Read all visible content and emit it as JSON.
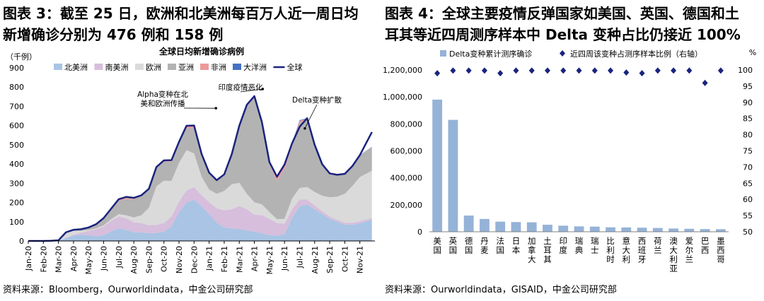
{
  "left_panel": {
    "title_line1": "图表 3：截至 25 日，欧洲和北美洲每百万人近一周日均",
    "title_line2": "新增确诊分别为 476 例和 158 例",
    "source": "资料来源：Bloomberg，Ourworldindata，中金公司研究部"
  },
  "right_panel": {
    "title_line1": "图表 4：全球主要疫情反弹国家如美国、英国、德国和土",
    "title_line2": "耳其等近四周测序样本中 Delta 变种占比仍接近 100%",
    "source": "资料来源：Ourworldindata，GISAID，中金公司研究部"
  },
  "chart_data": [
    {
      "type": "area",
      "title": "全球日均新增确诊病例",
      "ylabel": "（千例）",
      "ylim": [
        0,
        900
      ],
      "yticks": [
        0,
        100,
        200,
        300,
        400,
        500,
        600,
        700,
        800,
        900
      ],
      "x_tick_labels": [
        "Jan-20",
        "Feb-20",
        "Mar-20",
        "Apr-20",
        "May-20",
        "Jun-20",
        "Jul-20",
        "Aug-20",
        "Sep-20",
        "Oct-20",
        "Nov-20",
        "Dec-20",
        "Jan-21",
        "Feb-21",
        "Mar-21",
        "Apr-21",
        "May-21",
        "Jun-21",
        "Jul-21",
        "Aug-21",
        "Sep-21",
        "Oct-21",
        "Nov-21"
      ],
      "legend_position": "top",
      "x": [
        0,
        1,
        1.5,
        2,
        2.5,
        3,
        3.5,
        4,
        4.5,
        5,
        5.5,
        6,
        6.5,
        7,
        7.5,
        8,
        8.5,
        9,
        9.5,
        10,
        10.5,
        11,
        11.5,
        12,
        12.5,
        13,
        13.5,
        14,
        14.5,
        15,
        15.5,
        16,
        16.5,
        17,
        17.5,
        18,
        18.5,
        19,
        19.5,
        20,
        20.5,
        21,
        21.5,
        22,
        22.8
      ],
      "series": [
        {
          "name": "北美洲",
          "color": "#a9c4e4",
          "values": [
            0,
            0,
            0,
            0,
            15,
            28,
            33,
            30,
            25,
            30,
            50,
            65,
            58,
            45,
            45,
            40,
            42,
            48,
            75,
            150,
            200,
            215,
            180,
            140,
            95,
            70,
            65,
            62,
            55,
            48,
            40,
            30,
            28,
            35,
            120,
            180,
            190,
            165,
            140,
            115,
            100,
            85,
            85,
            92,
            110
          ]
        },
        {
          "name": "南美洲",
          "color": "#d6bedc",
          "values": [
            0,
            0,
            0,
            0,
            2,
            5,
            10,
            22,
            35,
            45,
            55,
            62,
            60,
            52,
            48,
            42,
            42,
            45,
            52,
            55,
            62,
            65,
            58,
            62,
            75,
            90,
            100,
            120,
            110,
            88,
            95,
            85,
            65,
            55,
            45,
            35,
            25,
            20,
            15,
            12,
            10,
            10,
            10,
            10,
            10
          ]
        },
        {
          "name": "欧洲",
          "color": "#dadada",
          "values": [
            0,
            0,
            0,
            1,
            25,
            20,
            10,
            5,
            5,
            6,
            8,
            12,
            15,
            25,
            40,
            90,
            200,
            220,
            185,
            200,
            210,
            175,
            95,
            65,
            75,
            100,
            130,
            120,
            80,
            65,
            55,
            35,
            20,
            25,
            55,
            60,
            65,
            70,
            80,
            100,
            120,
            150,
            190,
            230,
            245
          ]
        },
        {
          "name": "亚洲",
          "color": "#b3b3b3",
          "values": [
            0,
            0,
            1,
            2,
            3,
            5,
            8,
            12,
            20,
            35,
            50,
            70,
            85,
            95,
            100,
            95,
            95,
            100,
            100,
            100,
            115,
            130,
            105,
            80,
            70,
            80,
            150,
            290,
            455,
            545,
            420,
            250,
            200,
            260,
            270,
            340,
            350,
            240,
            160,
            120,
            110,
            100,
            100,
            110,
            120
          ]
        },
        {
          "name": "非洲",
          "color": "#ee9999",
          "values": [
            0,
            0,
            0,
            0,
            0,
            0,
            0,
            1,
            2,
            3,
            5,
            8,
            10,
            6,
            4,
            4,
            5,
            6,
            8,
            10,
            12,
            15,
            14,
            8,
            6,
            6,
            6,
            7,
            8,
            7,
            8,
            10,
            20,
            22,
            15,
            10,
            5,
            3,
            2,
            2,
            2,
            2,
            2,
            2,
            2
          ]
        },
        {
          "name": "大洋洲",
          "color": "#4472c4",
          "values": [
            0,
            0,
            0,
            0,
            0,
            0,
            0,
            0,
            0,
            0,
            0,
            0,
            1,
            1,
            0,
            0,
            0,
            0,
            0,
            0,
            0,
            0,
            0,
            0,
            0,
            0,
            0,
            0,
            0,
            0,
            0,
            0,
            1,
            1,
            2,
            3,
            3,
            2,
            2,
            2,
            2,
            2,
            2,
            2,
            2
          ]
        },
        {
          "name": "全球",
          "color": "#1a237e",
          "line": true,
          "values": [
            0,
            0,
            1,
            3,
            45,
            58,
            61,
            70,
            87,
            119,
            168,
            217,
            229,
            224,
            237,
            271,
            384,
            419,
            420,
            515,
            599,
            600,
            452,
            355,
            316,
            346,
            451,
            599,
            708,
            753,
            618,
            410,
            334,
            397,
            507,
            593,
            638,
            500,
            399,
            351,
            344,
            349,
            389,
            446,
            566
          ]
        }
      ],
      "annotations": [
        {
          "text_lines": [
            "Alpha变种在北",
            "美和欧洲传播"
          ],
          "target_x": 12.45,
          "target_y": 690
        },
        {
          "text_lines": [
            "印度疫情恶化"
          ],
          "target_x": 15.55,
          "target_y": 790
        },
        {
          "text_lines": [
            "Delta变种扩散"
          ],
          "target_x": 18.35,
          "target_y": 585
        }
      ]
    },
    {
      "type": "bar",
      "categories": [
        "美国",
        "英国",
        "德国",
        "丹麦",
        "法国",
        "日本",
        "加拿大",
        "土耳其",
        "印度",
        "瑞典",
        "瑞士",
        "比利时",
        "意大利",
        "西班牙",
        "荷兰",
        "澳大利亚",
        "爱尔兰",
        "巴西",
        "墨西哥"
      ],
      "series": [
        {
          "name": "Delta变种累计测序确诊",
          "axis": "left",
          "color": "#95b3d7",
          "values": [
            980000,
            830000,
            120000,
            95000,
            75000,
            72000,
            70000,
            52000,
            45000,
            40000,
            38000,
            33000,
            32000,
            30000,
            28000,
            24000,
            22000,
            20000,
            19000
          ]
        },
        {
          "name": "近四周该变种占测序样本比例（右轴）",
          "axis": "right",
          "color": "#1a237e",
          "marker": "diamond",
          "values": [
            99,
            99.8,
            99.8,
            99.8,
            99,
            99.8,
            99.8,
            99.8,
            99.8,
            99.8,
            99.8,
            99.8,
            99.2,
            99,
            99.8,
            99.8,
            99.8,
            96,
            99.8
          ]
        }
      ],
      "ylim": [
        0,
        1200000
      ],
      "yticks": [
        "0",
        "200,000",
        "400,000",
        "600,000",
        "800,000",
        "1,000,000",
        "1,200,000"
      ],
      "y2lim": [
        50,
        100
      ],
      "y2ticks": [
        50,
        55,
        60,
        65,
        70,
        75,
        80,
        85,
        90,
        95,
        100
      ],
      "y2label": "%",
      "legend_position": "top"
    }
  ]
}
